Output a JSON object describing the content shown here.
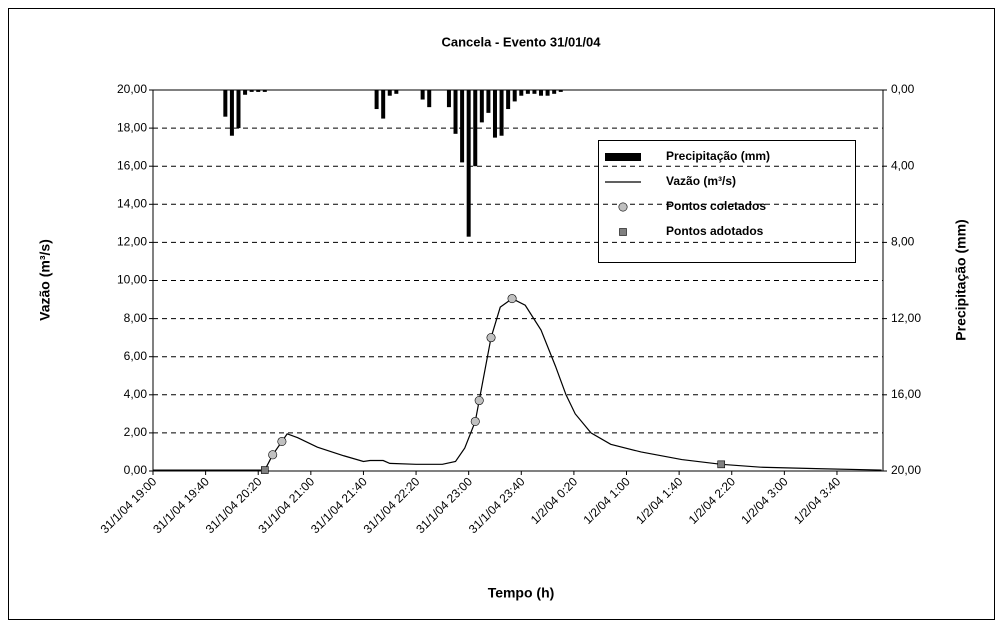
{
  "chart_data": {
    "type": "line",
    "title": "Cancela - Evento 31/01/04",
    "x_label": "Tempo (h)",
    "y_label": "Vazão (m³/s)",
    "y2_label": "Precipitação (mm)",
    "xlim": [
      "31/1/04 19:00",
      "1/2/04 4:15"
    ],
    "xticks": [
      "31/1/04 19:00",
      "31/1/04 19:40",
      "31/1/04 20:20",
      "31/1/04 21:00",
      "31/1/04 21:40",
      "31/1/04 22:20",
      "31/1/04 23:00",
      "31/1/04 23:40",
      "1/2/04 0:20",
      "1/2/04 1:00",
      "1/2/04 1:40",
      "1/2/04 2:20",
      "1/2/04 3:00",
      "1/2/04 3:40"
    ],
    "ylim": [
      0,
      20
    ],
    "yticks": [
      {
        "value": 0,
        "label": "0,00"
      },
      {
        "value": 2,
        "label": "2,00"
      },
      {
        "value": 4,
        "label": "4,00"
      },
      {
        "value": 6,
        "label": "6,00"
      },
      {
        "value": 8,
        "label": "8,00"
      },
      {
        "value": 10,
        "label": "10,00"
      },
      {
        "value": 12,
        "label": "12,00"
      },
      {
        "value": 14,
        "label": "14,00"
      },
      {
        "value": 16,
        "label": "16,00"
      },
      {
        "value": 18,
        "label": "18,00"
      },
      {
        "value": 20,
        "label": "20,00"
      }
    ],
    "y2lim": [
      0,
      20
    ],
    "y2ticks": [
      {
        "value": 0,
        "label": "0,00"
      },
      {
        "value": 4,
        "label": "4,00"
      },
      {
        "value": 8,
        "label": "8,00"
      },
      {
        "value": 12,
        "label": "12,00"
      },
      {
        "value": 16,
        "label": "16,00"
      },
      {
        "value": 20,
        "label": "20,00"
      }
    ],
    "y2_reversed": true,
    "grid": true,
    "legend": "upper right",
    "series": [
      {
        "name": "Precipitação (mm)",
        "type": "bar",
        "axis": "y2",
        "color": "#000000",
        "x": [
          "31/1/04 19:55",
          "31/1/04 20:00",
          "31/1/04 20:05",
          "31/1/04 20:10",
          "31/1/04 20:15",
          "31/1/04 20:20",
          "31/1/04 20:25",
          "31/1/04 21:50",
          "31/1/04 21:55",
          "31/1/04 22:00",
          "31/1/04 22:05",
          "31/1/04 22:25",
          "31/1/04 22:30",
          "31/1/04 22:45",
          "31/1/04 22:50",
          "31/1/04 22:55",
          "31/1/04 23:00",
          "31/1/04 23:05",
          "31/1/04 23:10",
          "31/1/04 23:15",
          "31/1/04 23:20",
          "31/1/04 23:25",
          "31/1/04 23:30",
          "31/1/04 23:35",
          "31/1/04 23:40",
          "31/1/04 23:45",
          "31/1/04 23:50",
          "31/1/04 23:55",
          "1/2/04 0:00",
          "1/2/04 0:05",
          "1/2/04 0:10"
        ],
        "values": [
          1.4,
          2.4,
          2.0,
          0.25,
          0.1,
          0.1,
          0.1,
          1.0,
          1.5,
          0.3,
          0.2,
          0.5,
          0.9,
          0.9,
          2.3,
          3.8,
          7.7,
          4.0,
          1.7,
          1.2,
          2.5,
          2.4,
          1.0,
          0.6,
          0.3,
          0.2,
          0.2,
          0.3,
          0.3,
          0.2,
          0.1
        ]
      },
      {
        "name": "Vazão (m³/s)",
        "type": "line",
        "color": "#000000",
        "x": [
          "31/1/04 19:00",
          "31/1/04 20:25",
          "31/1/04 20:31",
          "31/1/04 20:38",
          "31/1/04 20:42",
          "31/1/04 20:50",
          "31/1/04 21:05",
          "31/1/04 21:25",
          "31/1/04 21:40",
          "31/1/04 21:45",
          "31/1/04 21:55",
          "31/1/04 22:00",
          "31/1/04 22:20",
          "31/1/04 22:40",
          "31/1/04 22:50",
          "31/1/04 22:57",
          "31/1/04 23:05",
          "31/1/04 23:08",
          "31/1/04 23:17",
          "31/1/04 23:24",
          "31/1/04 23:33",
          "31/1/04 23:43",
          "31/1/04 23:55",
          "1/2/04 0:06",
          "1/2/04 0:14",
          "1/2/04 0:21",
          "1/2/04 0:33",
          "1/2/04 0:48",
          "1/2/04 1:11",
          "1/2/04 1:42",
          "1/2/04 2:12",
          "1/2/04 2:42",
          "1/2/04 3:28",
          "1/2/04 4:14"
        ],
        "values": [
          0.05,
          0.05,
          0.85,
          1.55,
          1.95,
          1.75,
          1.25,
          0.8,
          0.5,
          0.55,
          0.55,
          0.4,
          0.35,
          0.35,
          0.5,
          1.2,
          2.6,
          3.7,
          7.0,
          8.6,
          9.05,
          8.7,
          7.4,
          5.5,
          4.0,
          3.0,
          2.0,
          1.4,
          1.0,
          0.6,
          0.35,
          0.2,
          0.12,
          0.05
        ]
      },
      {
        "name": "Pontos coletados",
        "type": "scatter",
        "marker": "circle",
        "color": "#c0c0c0",
        "x": [
          "31/1/04 20:31",
          "31/1/04 20:38",
          "31/1/04 23:05",
          "31/1/04 23:08",
          "31/1/04 23:17",
          "31/1/04 23:33"
        ],
        "values": [
          0.85,
          1.55,
          2.6,
          3.7,
          7.0,
          9.05
        ]
      },
      {
        "name": "Pontos adotados",
        "type": "scatter",
        "marker": "square",
        "color": "#808080",
        "x": [
          "31/1/04 20:25",
          "1/2/04 2:12"
        ],
        "values": [
          0.05,
          0.35
        ]
      }
    ]
  }
}
